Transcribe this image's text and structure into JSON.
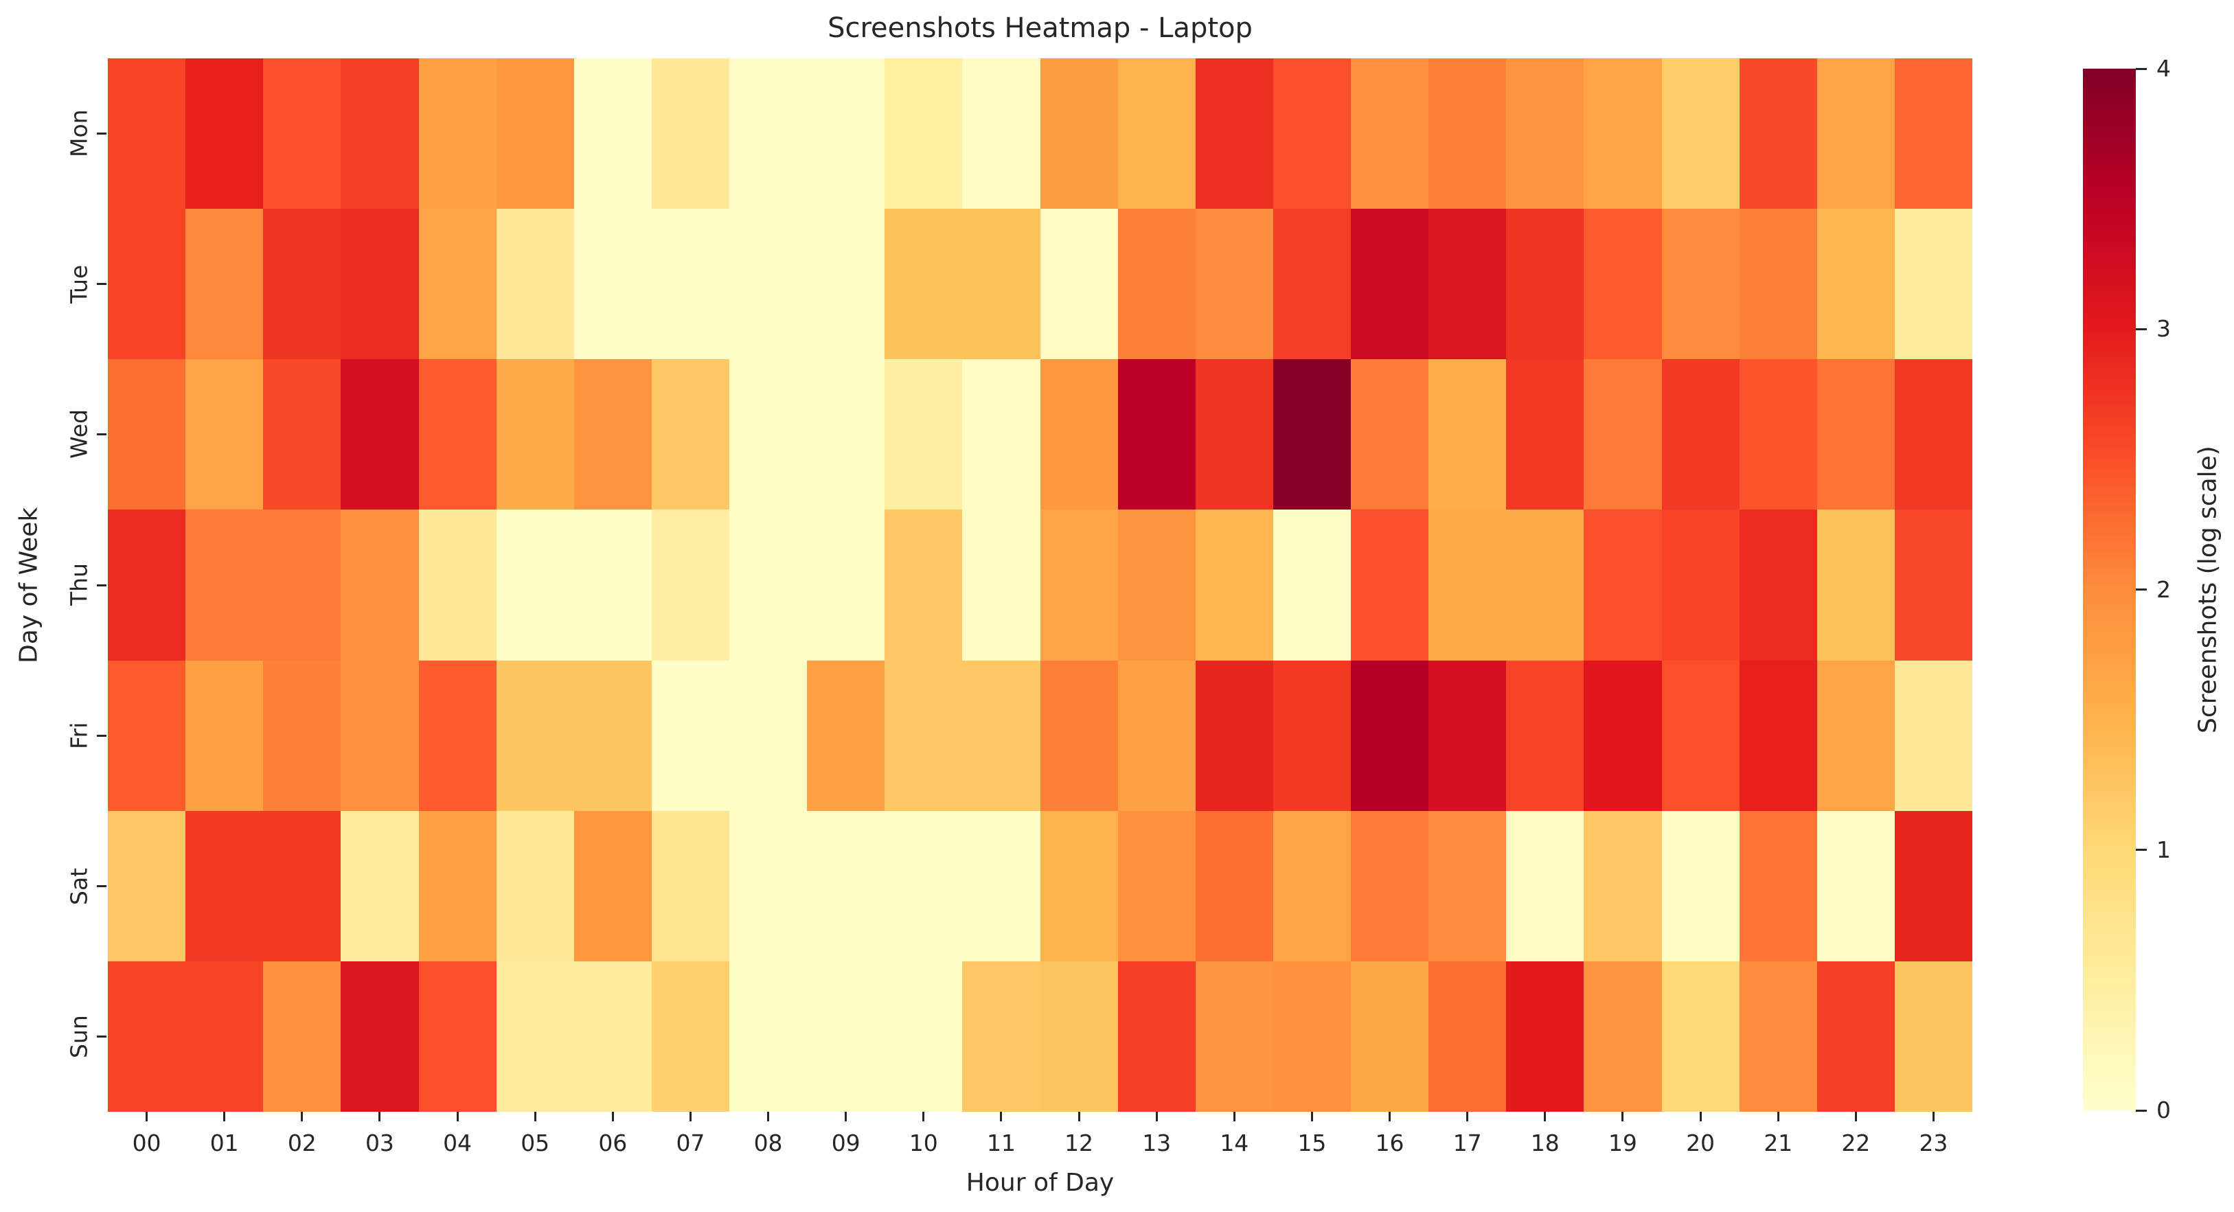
{
  "title": "Screenshots Heatmap - Laptop",
  "xlabel": "Hour of Day",
  "ylabel": "Day of Week",
  "colorbar": {
    "label": "Screenshots (log scale)",
    "ticks": [
      "0",
      "1",
      "2",
      "3",
      "4"
    ],
    "min": 0,
    "max": 4
  },
  "chart_data": {
    "type": "heatmap",
    "title": "Screenshots Heatmap - Laptop",
    "xlabel": "Hour of Day",
    "ylabel": "Day of Week",
    "colormap": "YlOrRd",
    "vmin": 0,
    "vmax": 4,
    "legend_position": "right-colorbar",
    "grid": false,
    "x": [
      "00",
      "01",
      "02",
      "03",
      "04",
      "05",
      "06",
      "07",
      "08",
      "09",
      "10",
      "11",
      "12",
      "13",
      "14",
      "15",
      "16",
      "17",
      "18",
      "19",
      "20",
      "21",
      "22",
      "23"
    ],
    "y": [
      "Mon",
      "Tue",
      "Wed",
      "Thu",
      "Fri",
      "Sat",
      "Sun"
    ],
    "values": [
      [
        2.6,
        2.95,
        2.5,
        2.65,
        1.75,
        1.85,
        0.05,
        0.6,
        0.05,
        0.05,
        0.5,
        0.1,
        1.8,
        1.5,
        2.8,
        2.5,
        1.95,
        2.1,
        1.9,
        1.7,
        1.15,
        2.55,
        1.7,
        2.3
      ],
      [
        2.6,
        2.05,
        2.75,
        2.85,
        1.7,
        0.6,
        0.05,
        0.05,
        0.05,
        0.05,
        1.3,
        1.3,
        0.1,
        2.1,
        2.0,
        2.65,
        3.3,
        3.1,
        2.75,
        2.4,
        2.0,
        2.1,
        1.45,
        0.55
      ],
      [
        2.25,
        1.7,
        2.55,
        3.2,
        2.4,
        1.6,
        1.9,
        1.2,
        0.05,
        0.05,
        0.45,
        0.1,
        1.85,
        3.5,
        2.75,
        3.95,
        2.15,
        1.55,
        2.7,
        2.15,
        2.7,
        2.45,
        2.2,
        2.7
      ],
      [
        2.85,
        2.15,
        2.15,
        1.95,
        0.6,
        0.05,
        0.05,
        0.45,
        0.05,
        0.05,
        1.2,
        0.1,
        1.7,
        1.9,
        1.45,
        0.05,
        2.5,
        1.6,
        1.6,
        2.5,
        2.6,
        2.85,
        1.3,
        2.55
      ],
      [
        2.4,
        1.75,
        2.1,
        1.95,
        2.4,
        1.25,
        1.25,
        0.05,
        0.05,
        1.75,
        1.2,
        1.2,
        2.1,
        1.75,
        2.9,
        2.7,
        3.55,
        3.2,
        2.6,
        3.05,
        2.5,
        2.95,
        1.7,
        0.6
      ],
      [
        1.2,
        2.7,
        2.7,
        0.55,
        1.75,
        0.6,
        1.85,
        0.7,
        0.05,
        0.05,
        0.05,
        0.05,
        1.5,
        1.95,
        2.25,
        1.7,
        2.15,
        2.0,
        0.07,
        1.2,
        0.07,
        2.2,
        0.07,
        2.9
      ],
      [
        2.6,
        2.6,
        1.95,
        3.1,
        2.5,
        0.55,
        0.55,
        1.1,
        0.05,
        0.05,
        0.05,
        1.2,
        1.25,
        2.65,
        1.9,
        1.95,
        1.65,
        2.25,
        3.0,
        1.9,
        1.0,
        2.0,
        2.65,
        1.25
      ]
    ]
  }
}
